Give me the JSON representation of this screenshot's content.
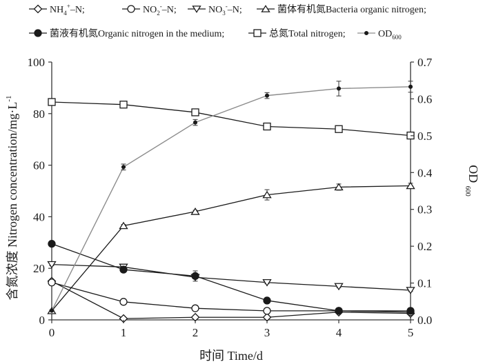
{
  "chart_data": {
    "type": "line",
    "x": [
      0,
      1,
      2,
      3,
      4,
      5
    ],
    "xlabel": "时间 Time/d",
    "ylabel": "含氮浓度 Nitrogen concentration/mg·L",
    "ylabel_sup": "-1",
    "y2label": "OD",
    "y2label_sub": "600",
    "ylim": [
      0,
      100
    ],
    "y2lim": [
      0,
      0.7
    ],
    "xticks": [
      "0",
      "1",
      "2",
      "3",
      "4",
      "5"
    ],
    "yticks": [
      "0",
      "20",
      "40",
      "60",
      "80",
      "100"
    ],
    "y2ticks": [
      "0.0",
      "0.1",
      "0.2",
      "0.3",
      "0.4",
      "0.5",
      "0.6",
      "0.7"
    ],
    "series": [
      {
        "key": "nh4",
        "legend_pre": "NH",
        "legend_sub": "4",
        "legend_sup": "+",
        "legend_post": "–N;",
        "marker": "diamond",
        "color": "#1a1a1a",
        "axis": "left",
        "values": [
          15,
          0.5,
          1,
          1,
          3,
          2.5
        ],
        "errors": [
          0,
          0.3,
          0.3,
          0.3,
          0.5,
          0.5
        ]
      },
      {
        "key": "no2",
        "legend_pre": "NO",
        "legend_sub": "2",
        "legend_sup": "-",
        "legend_post": "–N;",
        "marker": "circle",
        "color": "#1a1a1a",
        "axis": "left",
        "values": [
          14.5,
          7,
          4.5,
          3.5,
          3.5,
          3
        ],
        "errors": [
          0.5,
          0.5,
          0.5,
          0.3,
          0.3,
          0.3
        ]
      },
      {
        "key": "no3",
        "legend_pre": "NO",
        "legend_sub": "3",
        "legend_sup": "-",
        "legend_post": "–N;",
        "marker": "triangle-down",
        "color": "#1a1a1a",
        "axis": "left",
        "values": [
          21.5,
          20.5,
          16.5,
          14.5,
          13,
          11.5
        ],
        "errors": [
          0.5,
          0.5,
          0.5,
          0.5,
          0.5,
          0.5
        ]
      },
      {
        "key": "bacteria",
        "legend_pre": "菌体有机氮Bacteria organic nitrogen;",
        "legend_sub": "",
        "legend_sup": "",
        "legend_post": "",
        "marker": "triangle-up",
        "color": "#1a1a1a",
        "axis": "left",
        "values": [
          3.5,
          36.5,
          42,
          48.5,
          51.5,
          52
        ],
        "errors": [
          0.3,
          0.5,
          0.5,
          2.0,
          1.2,
          1.0
        ]
      },
      {
        "key": "medium",
        "legend_pre": "菌液有机氮Organic nitrogen in the medium;",
        "legend_sub": "",
        "legend_sup": "",
        "legend_post": "",
        "marker": "filled-circle",
        "color": "#1a1a1a",
        "axis": "left",
        "values": [
          29.5,
          19.5,
          17,
          7.5,
          3.5,
          3.5
        ],
        "errors": [
          0.5,
          1.0,
          2.0,
          0.5,
          0.5,
          0.3
        ]
      },
      {
        "key": "total",
        "legend_pre": "总氮Total nitrogen;",
        "legend_sub": "",
        "legend_sup": "",
        "legend_post": "",
        "marker": "square",
        "color": "#1a1a1a",
        "axis": "left",
        "values": [
          84.5,
          83.5,
          80.5,
          75,
          74,
          71.5
        ],
        "errors": [
          0.5,
          1.0,
          0.7,
          0.7,
          0.5,
          0.8
        ]
      },
      {
        "key": "od600",
        "legend_pre": "OD",
        "legend_sub": "600",
        "legend_sup": "",
        "legend_post": "",
        "marker": "dot",
        "color": "#8c8c8c",
        "axis": "right",
        "values": [
          0.025,
          0.415,
          0.536,
          0.609,
          0.628,
          0.633
        ],
        "errors": [
          0.002,
          0.008,
          0.008,
          0.008,
          0.02,
          0.015
        ]
      }
    ]
  }
}
